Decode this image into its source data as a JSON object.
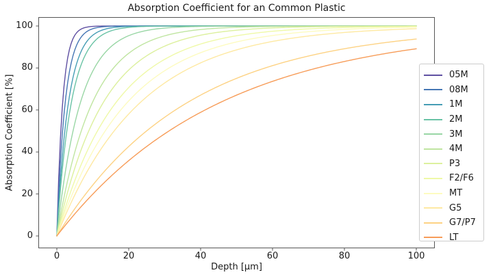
{
  "chart_data": {
    "type": "line",
    "title": "Absorption Coefficient for an Common Plastic",
    "xlabel": "Depth [μm]",
    "ylabel": "Absorption Coefficient [%]",
    "x_ticks": [
      0,
      20,
      40,
      60,
      80,
      100
    ],
    "y_ticks": [
      0,
      20,
      40,
      60,
      80,
      100
    ],
    "xlim": [
      -5.2,
      105.2
    ],
    "ylim": [
      -5.9,
      104.3
    ],
    "grid": false,
    "legend_position": "right",
    "model": "absorption_pct = 100 * (1 - exp(-depth_um / decay_length_um))",
    "sample_depths_um": [
      0,
      2,
      5,
      10,
      20,
      40,
      60,
      80,
      100
    ],
    "series": [
      {
        "name": "05M",
        "color": "#5e4fa2",
        "decay_length_um": 1.6,
        "absorption_pct_at_depth": [
          0,
          71.3,
          95.6,
          99.8,
          100,
          100,
          100,
          100,
          100
        ]
      },
      {
        "name": "08M",
        "color": "#4576b4",
        "decay_length_um": 2.3,
        "absorption_pct_at_depth": [
          0,
          58.1,
          88.6,
          98.7,
          100,
          100,
          100,
          100,
          100
        ]
      },
      {
        "name": "1M",
        "color": "#459db4",
        "decay_length_um": 3.2,
        "absorption_pct_at_depth": [
          0,
          46.5,
          79.0,
          95.6,
          99.8,
          100,
          100,
          100,
          100
        ]
      },
      {
        "name": "2M",
        "color": "#69c3a5",
        "decay_length_um": 4.0,
        "absorption_pct_at_depth": [
          0,
          39.3,
          71.3,
          91.8,
          99.3,
          100,
          100,
          100,
          100
        ]
      },
      {
        "name": "3M",
        "color": "#98d6a4",
        "decay_length_um": 6.5,
        "absorption_pct_at_depth": [
          0,
          26.5,
          53.7,
          78.5,
          95.4,
          99.8,
          100,
          100,
          100
        ]
      },
      {
        "name": "4M",
        "color": "#bfe5a0",
        "decay_length_um": 9.8,
        "absorption_pct_at_depth": [
          0,
          18.5,
          40.0,
          64.0,
          87.0,
          98.3,
          99.8,
          100,
          100
        ]
      },
      {
        "name": "P3",
        "color": "#dcf09d",
        "decay_length_um": 12.8,
        "absorption_pct_at_depth": [
          0,
          14.5,
          32.4,
          54.2,
          79.0,
          95.6,
          99.1,
          99.8,
          100
        ]
      },
      {
        "name": "F2/F6",
        "color": "#eff9a7",
        "decay_length_um": 16.3,
        "absorption_pct_at_depth": [
          0,
          11.5,
          26.4,
          45.9,
          70.7,
          91.4,
          97.5,
          99.3,
          99.8
        ]
      },
      {
        "name": "MT",
        "color": "#fdfbc0",
        "decay_length_um": 19.4,
        "absorption_pct_at_depth": [
          0,
          9.8,
          22.7,
          40.3,
          64.3,
          87.3,
          95.5,
          98.4,
          99.4
        ]
      },
      {
        "name": "G5",
        "color": "#fee9a2",
        "decay_length_um": 23,
        "absorption_pct_at_depth": [
          0,
          8.3,
          19.5,
          35.3,
          58.1,
          82.4,
          92.7,
          96.9,
          98.7
        ]
      },
      {
        "name": "G7/P7",
        "color": "#fdd283",
        "decay_length_um": 36,
        "absorption_pct_at_depth": [
          0,
          5.4,
          13.0,
          24.3,
          42.6,
          67.1,
          81.1,
          89.2,
          93.8
        ]
      },
      {
        "name": "LT",
        "color": "#f79c58",
        "decay_length_um": 45,
        "absorption_pct_at_depth": [
          0,
          4.3,
          10.5,
          19.9,
          35.9,
          58.9,
          73.6,
          83.1,
          89.2
        ]
      }
    ]
  },
  "style": {
    "spine_color": "#555555",
    "text_color": "#1a1a1a",
    "legend_border_color": "#cccccc",
    "background_color": "#ffffff"
  }
}
